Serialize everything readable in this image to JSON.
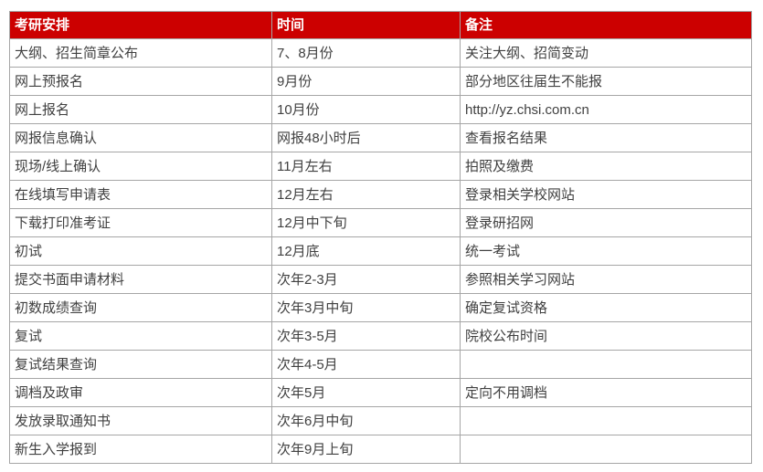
{
  "colors": {
    "header_bg": "#cc0000",
    "header_text": "#ffffff",
    "border": "#a6a6a6",
    "body_text": "#404040",
    "row_bg": "#ffffff"
  },
  "table": {
    "columns": [
      {
        "label": "考研安排"
      },
      {
        "label": "时间"
      },
      {
        "label": "备注"
      }
    ],
    "rows": [
      {
        "task": "大纲、招生简章公布",
        "time": "7、8月份",
        "note": "关注大纲、招简变动"
      },
      {
        "task": "网上预报名",
        "time": "9月份",
        "note": "部分地区往届生不能报"
      },
      {
        "task": "网上报名",
        "time": "10月份",
        "note": "http://yz.chsi.com.cn"
      },
      {
        "task": "网报信息确认",
        "time": "网报48小时后",
        "note": "查看报名结果"
      },
      {
        "task": "现场/线上确认",
        "time": "11月左右",
        "note": "拍照及缴费"
      },
      {
        "task": "在线填写申请表",
        "time": "12月左右",
        "note": "登录相关学校网站"
      },
      {
        "task": "下载打印准考证",
        "time": "12月中下旬",
        "note": "登录研招网"
      },
      {
        "task": "初试",
        "time": "12月底",
        "note": "统一考试"
      },
      {
        "task": "提交书面申请材料",
        "time": "次年2-3月",
        "note": "参照相关学习网站"
      },
      {
        "task": "初数成绩查询",
        "time": "次年3月中旬",
        "note": "确定复试资格"
      },
      {
        "task": "复试",
        "time": "次年3-5月",
        "note": "院校公布时间"
      },
      {
        "task": "复试结果查询",
        "time": "次年4-5月",
        "note": ""
      },
      {
        "task": "调档及政审",
        "time": "次年5月",
        "note": "定向不用调档"
      },
      {
        "task": "发放录取通知书",
        "time": "次年6月中旬",
        "note": ""
      },
      {
        "task": "新生入学报到",
        "time": "次年9月上旬",
        "note": ""
      }
    ]
  }
}
